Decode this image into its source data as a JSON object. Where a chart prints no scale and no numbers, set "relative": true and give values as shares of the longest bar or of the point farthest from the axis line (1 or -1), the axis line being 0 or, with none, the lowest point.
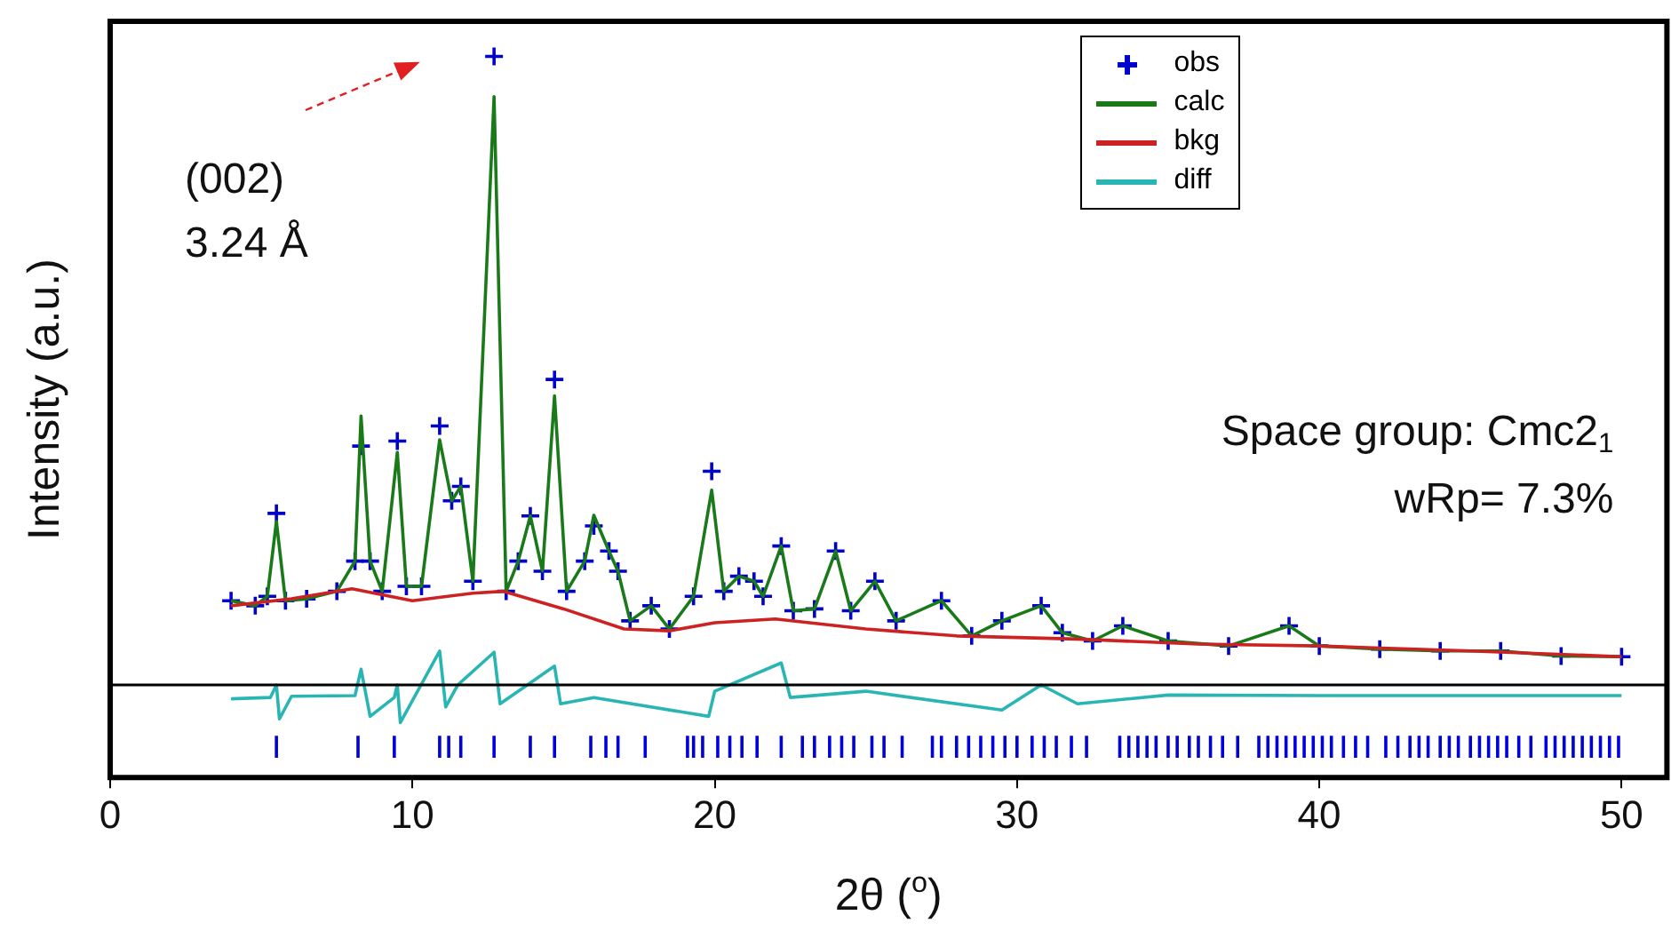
{
  "chart_data": {
    "type": "line",
    "relative": true,
    "xlabel": "2θ ($^{o}$)",
    "ylabel": "Intensity (a.u.)",
    "xlim": [
      0,
      51.5
    ],
    "xticks": [
      0,
      10,
      20,
      30,
      40,
      50
    ],
    "grid": false,
    "legend": "top right",
    "annotations": [
      "(002)\n3.24 Å",
      "Space group: Cmc2$_{1}$",
      "wRp= 7.3%"
    ],
    "series": [
      {
        "name": "obs",
        "type": "scatter",
        "marker": "cross",
        "color": "#0000cc",
        "x": [
          4.0,
          4.8,
          5.2,
          5.5,
          5.8,
          6.5,
          7.5,
          8.1,
          8.3,
          8.6,
          9.0,
          9.5,
          9.8,
          10.3,
          10.9,
          11.3,
          11.6,
          12.0,
          12.7,
          13.1,
          13.5,
          13.9,
          14.3,
          14.7,
          15.1,
          15.7,
          16.0,
          16.5,
          16.8,
          17.2,
          17.9,
          18.5,
          19.3,
          19.9,
          20.3,
          20.8,
          21.3,
          21.6,
          22.2,
          22.6,
          23.3,
          24.0,
          24.5,
          25.3,
          26.0,
          27.5,
          28.5,
          29.5,
          30.8,
          31.5,
          32.5,
          33.5,
          35,
          37,
          39,
          40,
          42,
          44,
          46,
          48,
          50
        ],
        "values": [
          0.134,
          0.126,
          0.141,
          0.273,
          0.134,
          0.137,
          0.149,
          0.197,
          0.38,
          0.197,
          0.149,
          0.388,
          0.157,
          0.157,
          0.412,
          0.293,
          0.316,
          0.165,
          1.0,
          0.149,
          0.197,
          0.269,
          0.181,
          0.486,
          0.149,
          0.197,
          0.253,
          0.213,
          0.181,
          0.102,
          0.126,
          0.089,
          0.141,
          0.34,
          0.149,
          0.173,
          0.165,
          0.141,
          0.221,
          0.118,
          0.121,
          0.213,
          0.118,
          0.165,
          0.102,
          0.134,
          0.078,
          0.102,
          0.126,
          0.083,
          0.07,
          0.094,
          0.07,
          0.062,
          0.094,
          0.062,
          0.057,
          0.054,
          0.054,
          0.046,
          0.045
        ]
      },
      {
        "name": "calc",
        "color": "#1a7a1a",
        "x": [
          4.0,
          4.8,
          5.2,
          5.5,
          5.8,
          6.5,
          7.5,
          8.1,
          8.3,
          8.6,
          9.0,
          9.5,
          9.8,
          10.3,
          10.9,
          11.3,
          11.6,
          12.0,
          12.7,
          13.1,
          13.5,
          13.9,
          14.3,
          14.7,
          15.1,
          15.7,
          16.0,
          16.5,
          16.8,
          17.2,
          17.9,
          18.5,
          19.3,
          19.9,
          20.3,
          20.8,
          21.3,
          21.6,
          22.2,
          22.6,
          23.3,
          24.0,
          24.5,
          25.3,
          26.0,
          27.5,
          28.5,
          29.5,
          30.8,
          31.5,
          32.5,
          33.5,
          35,
          37,
          39,
          40,
          42,
          44,
          46,
          48,
          50
        ],
        "values": [
          0.134,
          0.126,
          0.141,
          0.26,
          0.134,
          0.137,
          0.149,
          0.197,
          0.428,
          0.197,
          0.149,
          0.37,
          0.157,
          0.157,
          0.39,
          0.293,
          0.316,
          0.165,
          0.936,
          0.149,
          0.197,
          0.269,
          0.181,
          0.46,
          0.149,
          0.197,
          0.27,
          0.213,
          0.181,
          0.102,
          0.126,
          0.089,
          0.141,
          0.31,
          0.149,
          0.173,
          0.165,
          0.141,
          0.221,
          0.118,
          0.121,
          0.213,
          0.118,
          0.165,
          0.102,
          0.134,
          0.078,
          0.102,
          0.126,
          0.083,
          0.07,
          0.094,
          0.07,
          0.062,
          0.094,
          0.062,
          0.057,
          0.054,
          0.054,
          0.046,
          0.045
        ]
      },
      {
        "name": "bkg",
        "color": "#cc2222",
        "x": [
          4,
          6,
          8,
          10,
          12,
          13,
          15,
          17,
          18.5,
          20,
          22,
          25,
          28,
          32,
          36,
          40,
          45,
          50
        ],
        "values": [
          0.126,
          0.137,
          0.153,
          0.134,
          0.146,
          0.149,
          0.121,
          0.089,
          0.086,
          0.099,
          0.105,
          0.089,
          0.078,
          0.073,
          0.065,
          0.062,
          0.054,
          0.045
        ]
      },
      {
        "name": "diff",
        "color": "#2ab5b5",
        "x": [
          4,
          5.3,
          5.5,
          5.6,
          6,
          8.1,
          8.3,
          8.6,
          9.4,
          9.5,
          9.6,
          10.9,
          11.1,
          11.5,
          12.7,
          12.9,
          14.7,
          14.9,
          16,
          19.8,
          20,
          22.2,
          22.5,
          25,
          29.5,
          30.8,
          32,
          35,
          40,
          50
        ],
        "values": [
          -0.022,
          -0.02,
          0.0,
          -0.054,
          -0.018,
          -0.017,
          0.025,
          -0.05,
          -0.02,
          0.0,
          -0.06,
          0.054,
          -0.035,
          0.0,
          0.052,
          -0.03,
          0.03,
          -0.03,
          -0.02,
          -0.05,
          -0.01,
          0.035,
          -0.02,
          -0.01,
          -0.04,
          0.0,
          -0.03,
          -0.016,
          -0.017,
          -0.017
        ]
      },
      {
        "color": "#0000dd",
        "x": [
          5.5,
          5.5,
          null,
          8.2,
          8.2,
          null,
          9.4,
          9.4,
          null,
          10.9,
          10.9,
          null,
          11.2,
          11.2,
          null,
          11.6,
          11.6,
          null,
          12.7,
          12.7,
          null,
          13.9,
          13.9,
          null,
          14.7,
          14.7,
          null,
          15.9,
          15.9,
          null,
          16.4,
          16.4,
          null,
          16.8,
          16.8,
          null,
          17.7,
          17.7,
          null,
          19.1,
          19.1,
          null,
          19.3,
          19.3,
          null,
          19.6,
          19.6,
          null,
          20.1,
          20.1,
          null,
          20.5,
          20.5,
          null,
          20.9,
          20.9,
          null,
          21.4,
          21.4,
          null,
          22.2,
          22.2,
          null,
          22.9,
          22.9,
          null,
          23.3,
          23.3,
          null,
          23.8,
          23.8,
          null,
          24.2,
          24.2,
          null,
          24.6,
          24.6,
          null,
          25.2,
          25.2,
          null,
          25.6,
          25.6,
          null,
          26.2,
          26.2,
          null,
          27.2,
          27.2,
          null,
          27.5,
          27.5,
          null,
          28.0,
          28.0,
          null,
          28.4,
          28.4,
          null,
          28.8,
          28.8,
          null,
          29.2,
          29.2,
          null,
          29.6,
          29.6,
          null,
          30.0,
          30.0,
          null,
          30.5,
          30.5,
          null,
          30.9,
          30.9,
          null,
          31.3,
          31.3,
          null,
          31.8,
          31.8,
          null,
          32.3,
          32.3,
          null,
          33.4,
          33.4,
          null,
          33.7,
          33.7,
          null,
          34.0,
          34.0,
          null,
          34.3,
          34.3,
          null,
          34.6,
          34.6,
          null,
          35.0,
          35.0,
          null,
          35.3,
          35.3,
          null,
          35.7,
          35.7,
          null,
          36.0,
          36.0,
          null,
          36.4,
          36.4,
          null,
          36.8,
          36.8,
          null,
          37.3,
          37.3,
          null,
          38.0,
          38.0,
          null,
          38.3,
          38.3,
          null,
          38.6,
          38.6,
          null,
          38.9,
          38.9,
          null,
          39.2,
          39.2,
          null,
          39.5,
          39.5,
          null,
          39.8,
          39.8,
          null,
          40.1,
          40.1,
          null,
          40.4,
          40.4,
          null,
          40.8,
          40.8,
          null,
          41.2,
          41.2,
          null,
          41.6,
          41.6,
          null,
          42.2,
          42.2,
          null,
          42.6,
          42.6,
          null,
          43.0,
          43.0,
          null,
          43.3,
          43.3,
          null,
          43.6,
          43.6,
          null,
          44.0,
          44.0,
          null,
          44.3,
          44.3,
          null,
          44.6,
          44.6,
          null,
          45.0,
          45.0,
          null,
          45.3,
          45.3,
          null,
          45.6,
          45.6,
          null,
          45.9,
          45.9,
          null,
          46.2,
          46.2,
          null,
          46.6,
          46.6,
          null,
          47.0,
          47.0,
          null,
          47.5,
          47.5,
          null,
          47.8,
          47.8,
          null,
          48.1,
          48.1,
          null,
          48.4,
          48.4,
          null,
          48.7,
          48.7,
          null,
          49.0,
          49.0,
          null,
          49.3,
          49.3,
          null,
          49.6,
          49.6,
          null,
          49.9,
          49.9,
          null
        ],
        "values": [
          -0.116,
          -0.081,
          null,
          -0.116,
          -0.081,
          null,
          -0.116,
          -0.081,
          null,
          -0.116,
          -0.081,
          null,
          -0.116,
          -0.081,
          null,
          -0.116,
          -0.081,
          null,
          -0.116,
          -0.081,
          null,
          -0.116,
          -0.081,
          null,
          -0.116,
          -0.081,
          null,
          -0.116,
          -0.081,
          null,
          -0.116,
          -0.081,
          null,
          -0.116,
          -0.081,
          null,
          -0.116,
          -0.081,
          null,
          -0.116,
          -0.081,
          null,
          -0.116,
          -0.081,
          null,
          -0.116,
          -0.081,
          null,
          -0.116,
          -0.081,
          null,
          -0.116,
          -0.081,
          null,
          -0.116,
          -0.081,
          null,
          -0.116,
          -0.081,
          null,
          -0.116,
          -0.081,
          null,
          -0.116,
          -0.081,
          null,
          -0.116,
          -0.081,
          null,
          -0.116,
          -0.081,
          null,
          -0.116,
          -0.081,
          null,
          -0.116,
          -0.081,
          null,
          -0.116,
          -0.081,
          null,
          -0.116,
          -0.081,
          null,
          -0.116,
          -0.081,
          null,
          -0.116,
          -0.081,
          null,
          -0.116,
          -0.081,
          null,
          -0.116,
          -0.081,
          null,
          -0.116,
          -0.081,
          null,
          -0.116,
          -0.081,
          null,
          -0.116,
          -0.081,
          null,
          -0.116,
          -0.081,
          null,
          -0.116,
          -0.081,
          null,
          -0.116,
          -0.081,
          null,
          -0.116,
          -0.081,
          null,
          -0.116,
          -0.081,
          null,
          -0.116,
          -0.081,
          null,
          -0.116,
          -0.081,
          null,
          -0.116,
          -0.081,
          null,
          -0.116,
          -0.081,
          null,
          -0.116,
          -0.081,
          null,
          -0.116,
          -0.081,
          null,
          -0.116,
          -0.081,
          null,
          -0.116,
          -0.081,
          null,
          -0.116,
          -0.081,
          null,
          -0.116,
          -0.081,
          null,
          -0.116,
          -0.081,
          null,
          -0.116,
          -0.081,
          null,
          -0.116,
          -0.081,
          null,
          -0.116,
          -0.081,
          null,
          -0.116,
          -0.081,
          null,
          -0.116,
          -0.081,
          null,
          -0.116,
          -0.081,
          null,
          -0.116,
          -0.081,
          null,
          -0.116,
          -0.081,
          null,
          -0.116,
          -0.081,
          null,
          -0.116,
          -0.081,
          null,
          -0.116,
          -0.081,
          null,
          -0.116,
          -0.081,
          null,
          -0.116,
          -0.081,
          null,
          -0.116,
          -0.081,
          null,
          -0.116,
          -0.081,
          null,
          -0.116,
          -0.081,
          null,
          -0.116,
          -0.081,
          null,
          -0.116,
          -0.081,
          null,
          -0.116,
          -0.081,
          null,
          -0.116,
          -0.081,
          null,
          -0.116,
          -0.081,
          null,
          -0.116,
          -0.081,
          null,
          -0.116,
          -0.081,
          null,
          -0.116,
          -0.081,
          null,
          -0.116,
          -0.081,
          null,
          -0.116,
          -0.081,
          null,
          -0.116,
          -0.081,
          null,
          -0.116,
          -0.081,
          null,
          -0.116,
          -0.081,
          null,
          -0.116,
          -0.081,
          null,
          -0.116,
          -0.081,
          null,
          -0.116,
          -0.081,
          null,
          -0.116,
          -0.081,
          null,
          -0.116,
          -0.081,
          null,
          -0.116,
          -0.081,
          null,
          -0.116,
          -0.081,
          null,
          -0.116,
          -0.081,
          null,
          -0.116,
          -0.081,
          null,
          -0.116,
          -0.081,
          null
        ]
      }
    ]
  }
}
